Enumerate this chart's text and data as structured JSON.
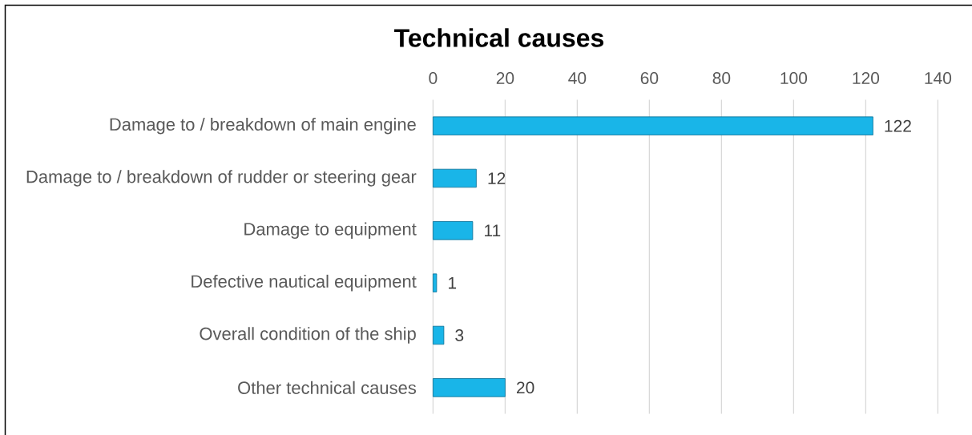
{
  "chart_data": {
    "type": "bar",
    "orientation": "horizontal",
    "title": "Technical causes",
    "categories": [
      "Damage to / breakdown of main engine",
      "Damage to / breakdown of rudder or steering gear",
      "Damage to equipment",
      "Defective nautical equipment",
      "Overall condition of the ship",
      "Other technical causes"
    ],
    "values": [
      122,
      12,
      11,
      1,
      3,
      20
    ],
    "color": "#19b5e8",
    "xlim": [
      0,
      140
    ],
    "xticks": [
      0,
      20,
      40,
      60,
      80,
      100,
      120,
      140
    ],
    "grid": "x",
    "data_labels": true
  }
}
